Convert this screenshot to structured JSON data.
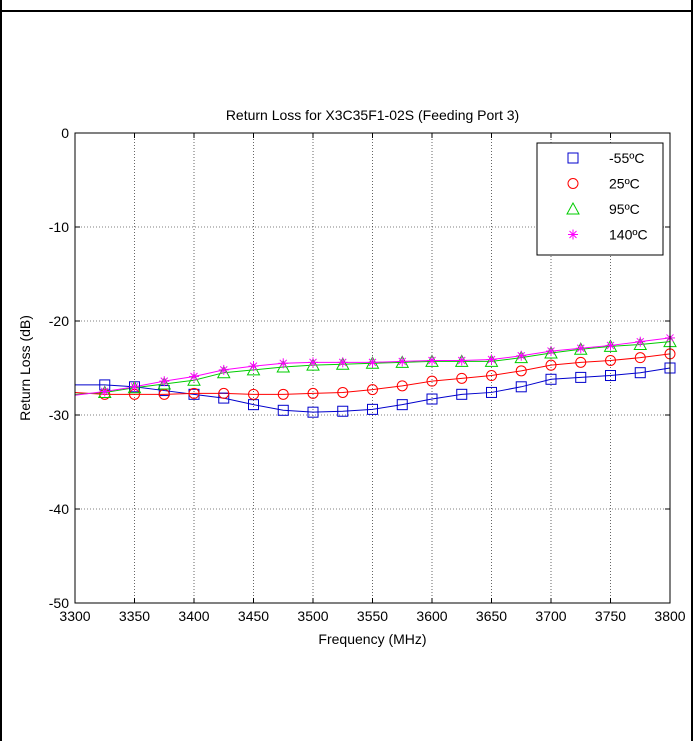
{
  "chart_data": {
    "type": "line",
    "title": "Return Loss for X3C35F1-02S (Feeding Port 3)",
    "xlabel": "Frequency (MHz)",
    "ylabel": "Return Loss (dB)",
    "xlim": [
      3300,
      3800
    ],
    "ylim": [
      -50,
      0
    ],
    "xticks": [
      3300,
      3350,
      3400,
      3450,
      3500,
      3550,
      3600,
      3650,
      3700,
      3750,
      3800
    ],
    "yticks": [
      0,
      -10,
      -20,
      -30,
      -40,
      -50
    ],
    "grid": true,
    "legend_position": "top-right",
    "x": [
      3300,
      3325,
      3350,
      3375,
      3400,
      3425,
      3450,
      3475,
      3500,
      3525,
      3550,
      3575,
      3600,
      3625,
      3650,
      3675,
      3700,
      3725,
      3750,
      3775,
      3800
    ],
    "series": [
      {
        "name": "-55ºC",
        "color": "#0000cc",
        "marker": "square",
        "values": [
          -26.8,
          -26.8,
          -27.0,
          -27.4,
          -27.8,
          -28.2,
          -28.9,
          -29.5,
          -29.7,
          -29.6,
          -29.4,
          -28.9,
          -28.3,
          -27.8,
          -27.6,
          -27.0,
          -26.2,
          -26.0,
          -25.8,
          -25.5,
          -25.0
        ]
      },
      {
        "name": "25ºC",
        "color": "#ff0000",
        "marker": "circle",
        "values": [
          -27.6,
          -27.8,
          -27.8,
          -27.8,
          -27.7,
          -27.7,
          -27.8,
          -27.8,
          -27.7,
          -27.6,
          -27.3,
          -26.9,
          -26.4,
          -26.1,
          -25.8,
          -25.3,
          -24.7,
          -24.4,
          -24.2,
          -23.9,
          -23.5
        ]
      },
      {
        "name": "95ºC",
        "color": "#00cc00",
        "marker": "triangle",
        "values": [
          -27.8,
          -27.6,
          -27.1,
          -26.7,
          -26.3,
          -25.5,
          -25.2,
          -24.9,
          -24.7,
          -24.6,
          -24.5,
          -24.4,
          -24.3,
          -24.3,
          -24.3,
          -23.9,
          -23.4,
          -23.0,
          -22.7,
          -22.5,
          -22.2
        ]
      },
      {
        "name": "140ºC",
        "color": "#ff00ff",
        "marker": "star",
        "values": [
          -27.9,
          -27.5,
          -27.0,
          -26.4,
          -25.9,
          -25.2,
          -24.8,
          -24.5,
          -24.4,
          -24.4,
          -24.4,
          -24.3,
          -24.2,
          -24.2,
          -24.1,
          -23.7,
          -23.2,
          -22.9,
          -22.6,
          -22.2,
          -21.8
        ]
      }
    ]
  }
}
